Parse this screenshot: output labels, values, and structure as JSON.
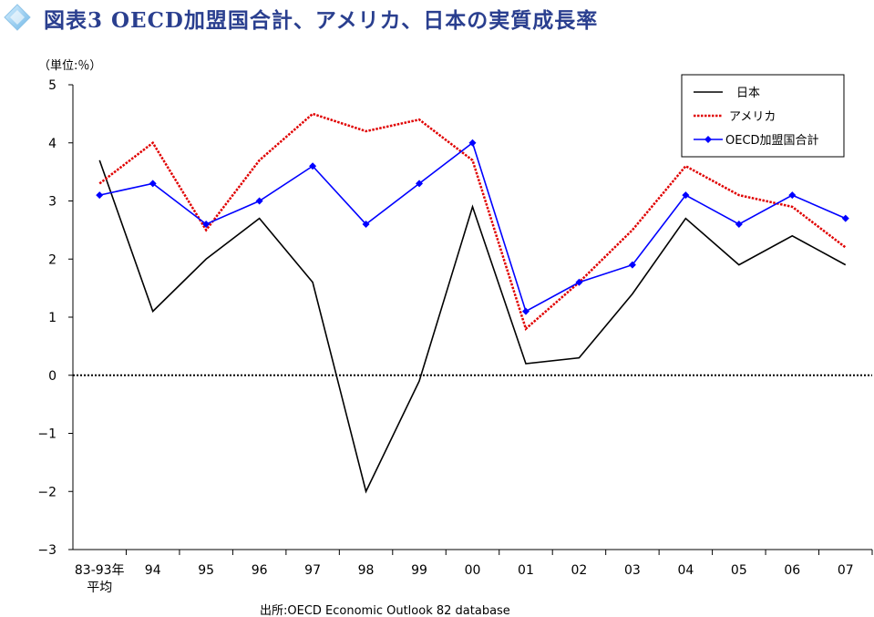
{
  "header": {
    "title": "図表3 OECD加盟国合計、アメリカ、日本の実質成長率",
    "icon": "diamond-bullet-icon"
  },
  "unit_label": "（単位:％）",
  "source": "出所:OECD Economic Outlook 82 database",
  "chart_data": {
    "type": "line",
    "title": "図表3 OECD加盟国合計、アメリカ、日本の実質成長率",
    "categories": [
      "83-93年\n平均",
      "94",
      "95",
      "96",
      "97",
      "98",
      "99",
      "00",
      "01",
      "02",
      "03",
      "04",
      "05",
      "06",
      "07"
    ],
    "ylim": [
      -3,
      5
    ],
    "yticks": [
      -3,
      -2,
      -1,
      0,
      1,
      2,
      3,
      4,
      5
    ],
    "ytick_labels": [
      "−3",
      "−2",
      "−1",
      "0",
      "1",
      "2",
      "3",
      "4",
      "5"
    ],
    "grid": false,
    "zero_line": "dotted",
    "legend_position": "top-right",
    "series": [
      {
        "name": "日本",
        "color": "#000000",
        "style": "solid",
        "marker": "none",
        "values": [
          3.7,
          1.1,
          2.0,
          2.7,
          1.6,
          -2.0,
          -0.1,
          2.9,
          0.2,
          0.3,
          1.4,
          2.7,
          1.9,
          2.4,
          1.9
        ]
      },
      {
        "name": "アメリカ",
        "color": "#e00000",
        "style": "dotted",
        "marker": "none",
        "values": [
          3.3,
          4.0,
          2.5,
          3.7,
          4.5,
          4.2,
          4.4,
          3.7,
          0.8,
          1.6,
          2.5,
          3.6,
          3.1,
          2.9,
          2.2
        ]
      },
      {
        "name": "OECD加盟国合計",
        "color": "#0000ff",
        "style": "solid",
        "marker": "diamond",
        "values": [
          3.1,
          3.3,
          2.6,
          3.0,
          3.6,
          2.6,
          3.3,
          4.0,
          1.1,
          1.6,
          1.9,
          3.1,
          2.6,
          3.1,
          2.7
        ]
      }
    ]
  }
}
